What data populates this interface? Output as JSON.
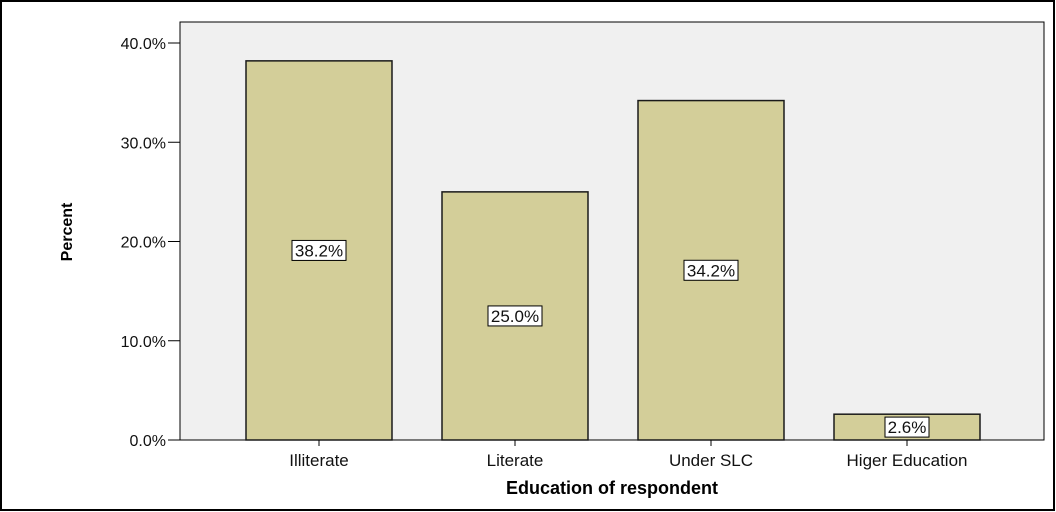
{
  "chart_data": {
    "type": "bar",
    "title": "",
    "xlabel": "Education of respondent",
    "ylabel": "Percent",
    "categories": [
      "Illiterate",
      "Literate",
      "Under SLC",
      "Higer Education"
    ],
    "values": [
      38.2,
      25.0,
      34.2,
      2.6
    ],
    "data_labels": [
      "38.2%",
      "25.0%",
      "34.2%",
      "2.6%"
    ],
    "ylim": [
      0,
      40
    ],
    "yticks": [
      0,
      10,
      20,
      30,
      40
    ],
    "ytick_labels": [
      "0.0%",
      "10.0%",
      "20.0%",
      "30.0%",
      "40.0%"
    ],
    "grid": false,
    "legend": "none",
    "colors": {
      "bar_fill": "#D3CE99",
      "bar_stroke": "#1A1A1A",
      "plot_background": "#F0F0F0",
      "frame": "#000000"
    }
  }
}
